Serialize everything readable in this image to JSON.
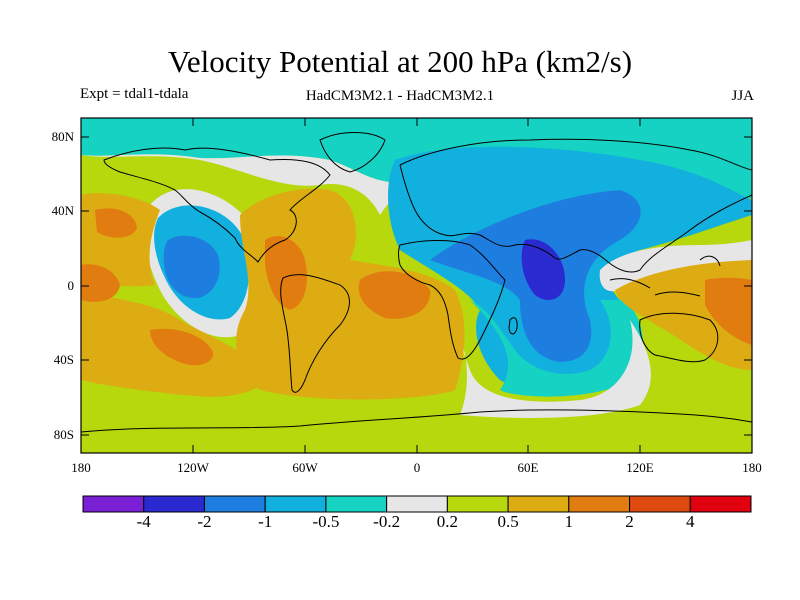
{
  "title": "Velocity Potential at 200 hPa (km2/s)",
  "subtitle_left": "Expt = tdal1-tdala",
  "subtitle_center": "HadCM3M2.1 - HadCM3M2.1",
  "subtitle_right": "JJA",
  "map": {
    "lat_ticks": [
      "80N",
      "40N",
      "0",
      "40S",
      "80S"
    ],
    "lon_ticks": [
      "180",
      "120W",
      "60W",
      "0",
      "60E",
      "120E",
      "180"
    ]
  },
  "colorbar": {
    "labels": [
      "-4",
      "-2",
      "-1",
      "-0.5",
      "-0.2",
      "0.2",
      "0.5",
      "1",
      "2",
      "4"
    ],
    "colors": [
      "#7a1fd6",
      "#2a2ad0",
      "#1e7ee0",
      "#12b0de",
      "#16d2c2",
      "#e6e6e6",
      "#b6d80c",
      "#dcac12",
      "#e07c10",
      "#dc4a10",
      "#e00010"
    ]
  },
  "field_colors": {
    "very_neg": "#2a2ad0",
    "neg": "#1e7ee0",
    "light_neg": "#12b0de",
    "teal": "#16d2c2",
    "neutral": "#e6e6e6",
    "light_pos": "#b6d80c",
    "pos": "#dcac12",
    "strong_pos": "#e07c10"
  }
}
